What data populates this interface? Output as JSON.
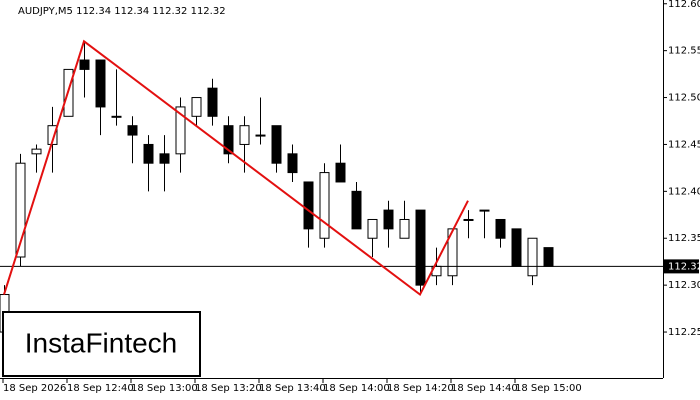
{
  "chart_data": {
    "type": "candlestick",
    "title": "AUDJPY,M5  112.34 112.34 112.32 112.32",
    "logo": "InstaFintech",
    "categories": [
      "18 Sep 2026",
      null,
      null,
      null,
      "18 Sep 12:40",
      null,
      null,
      null,
      "18 Sep 13:00",
      null,
      null,
      null,
      "18 Sep 13:20",
      null,
      null,
      null,
      "18 Sep 13:40",
      null,
      null,
      null,
      "18 Sep 14:00",
      null,
      null,
      null,
      "18 Sep 14:20",
      null,
      null,
      null,
      "18 Sep 14:40",
      null,
      null,
      null,
      "18 Sep 15:00",
      null,
      null
    ],
    "open": [
      112.25,
      112.33,
      112.44,
      112.45,
      112.48,
      112.54,
      112.54,
      112.48,
      112.47,
      112.45,
      112.44,
      112.44,
      112.48,
      112.51,
      112.47,
      112.45,
      112.46,
      112.47,
      112.44,
      112.41,
      112.35,
      112.43,
      112.4,
      112.35,
      112.38,
      112.35,
      112.38,
      112.31,
      112.31,
      112.37,
      112.38,
      112.37,
      112.36,
      112.31,
      112.34
    ],
    "high": [
      112.3,
      112.44,
      112.45,
      112.49,
      112.53,
      112.56,
      112.54,
      112.53,
      112.48,
      112.46,
      112.46,
      112.5,
      112.5,
      112.52,
      112.48,
      112.48,
      112.5,
      112.47,
      112.45,
      112.41,
      112.43,
      112.45,
      112.41,
      112.37,
      112.39,
      112.39,
      112.38,
      112.34,
      112.36,
      112.38,
      112.38,
      112.37,
      112.36,
      112.35,
      112.34
    ],
    "low": [
      112.25,
      112.32,
      112.42,
      112.42,
      112.48,
      112.5,
      112.46,
      112.47,
      112.43,
      112.4,
      112.4,
      112.42,
      112.47,
      112.47,
      112.43,
      112.42,
      112.45,
      112.42,
      112.41,
      112.34,
      112.34,
      112.41,
      112.36,
      112.33,
      112.34,
      112.35,
      112.29,
      112.3,
      112.3,
      112.35,
      112.35,
      112.34,
      112.32,
      112.3,
      112.32
    ],
    "close": [
      112.29,
      112.43,
      112.445,
      112.47,
      112.53,
      112.53,
      112.49,
      112.48,
      112.46,
      112.43,
      112.43,
      112.49,
      112.5,
      112.48,
      112.44,
      112.47,
      112.46,
      112.43,
      112.42,
      112.36,
      112.42,
      112.41,
      112.36,
      112.37,
      112.36,
      112.37,
      112.3,
      112.32,
      112.36,
      112.37,
      112.38,
      112.35,
      112.32,
      112.35,
      112.32
    ],
    "pattern": {
      "color": "#e31010",
      "x": [
        0,
        5,
        26,
        29
      ],
      "values": [
        112.29,
        112.56,
        112.29,
        112.39
      ]
    },
    "price_line": 112.32,
    "ylim": [
      112.201,
      112.604
    ],
    "yticks": [
      {
        "value": 112.6,
        "label": "112.60"
      },
      {
        "value": 112.55,
        "label": "112.55"
      },
      {
        "value": 112.5,
        "label": "112.50"
      },
      {
        "value": 112.45,
        "label": "112.45"
      },
      {
        "value": 112.4,
        "label": "112.40"
      },
      {
        "value": 112.35,
        "label": "112.35"
      },
      {
        "value": 112.3,
        "label": "112.30"
      },
      {
        "value": 112.25,
        "label": "112.25"
      }
    ]
  }
}
